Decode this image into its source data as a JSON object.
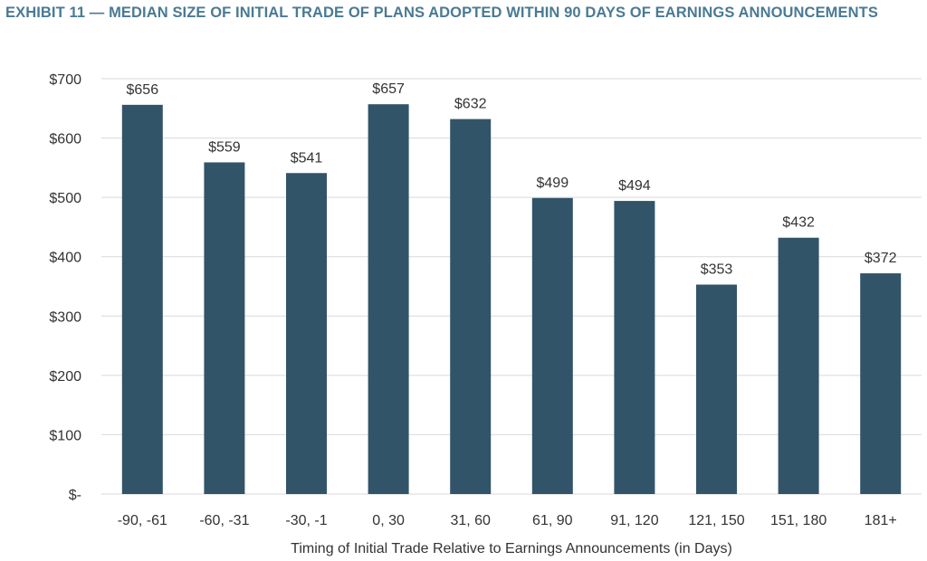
{
  "chart_data": {
    "type": "bar",
    "title": "EXHIBIT 11 — MEDIAN SIZE OF INITIAL TRADE OF PLANS ADOPTED WITHIN 90 DAYS OF EARNINGS ANNOUNCEMENTS",
    "xlabel": "Timing of Initial Trade Relative to Earnings Announcements (in Days)",
    "ylabel": "",
    "categories": [
      "-90, -61",
      "-60, -31",
      "-30, -1",
      "0, 30",
      "31, 60",
      "61, 90",
      "91, 120",
      "121, 150",
      "151, 180",
      "181+"
    ],
    "values": [
      656,
      559,
      541,
      657,
      632,
      499,
      494,
      353,
      432,
      372
    ],
    "data_labels": [
      "$656",
      "$559",
      "$541",
      "$657",
      "$632",
      "$499",
      "$494",
      "$353",
      "$432",
      "$372"
    ],
    "ylim": [
      0,
      700
    ],
    "y_ticks": [
      0,
      100,
      200,
      300,
      400,
      500,
      600,
      700
    ],
    "y_tick_labels": [
      "$-",
      "$100",
      "$200",
      "$300",
      "$400",
      "$500",
      "$600",
      "$700"
    ],
    "grid": true,
    "legend": "none",
    "bar_color": "#325468",
    "title_color": "#4a7a93",
    "grid_color": "#d9d9d9"
  }
}
